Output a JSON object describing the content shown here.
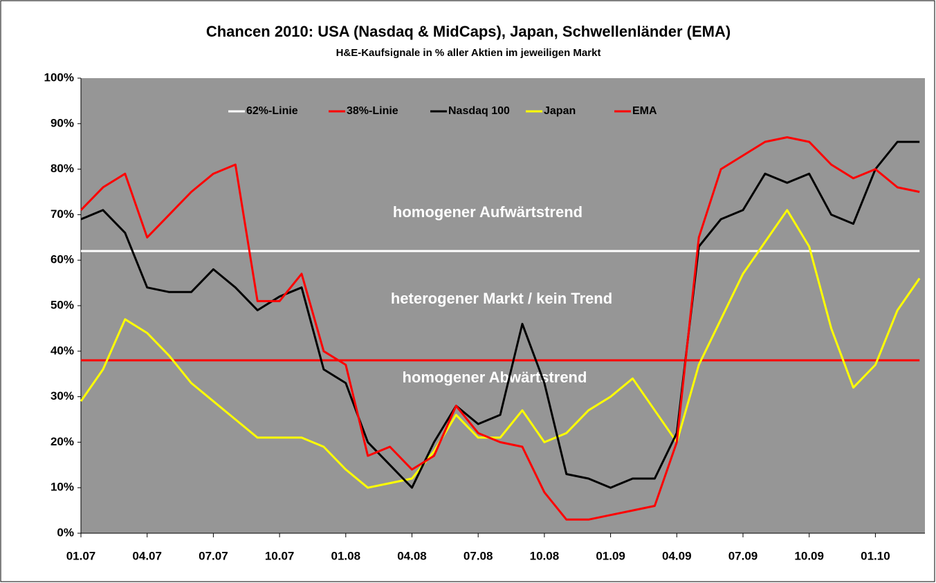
{
  "chart_data": {
    "type": "line",
    "title": "Chancen 2010: USA (Nasdaq & MidCaps), Japan, Schwellenländer (EMA)",
    "subtitle": "H&E-Kaufsignale in % aller Aktien im jeweiligen Markt",
    "annotations": [
      "homogener Aufwärtstrend",
      "heterogener Markt / kein Trend",
      "homogener Abwärtstrend"
    ],
    "categories": [
      "01.07",
      null,
      null,
      "04.07",
      null,
      null,
      "07.07",
      null,
      null,
      "10.07",
      null,
      null,
      "01.08",
      null,
      null,
      "04.08",
      null,
      null,
      "07.08",
      null,
      null,
      "10.08",
      null,
      null,
      "01.09",
      null,
      null,
      "04.09",
      null,
      null,
      "07.09",
      null,
      null,
      "10.09",
      null,
      null,
      "01.10",
      null,
      null
    ],
    "series": [
      {
        "name": "62%-Linie",
        "color": "#ffffff",
        "values": [
          62,
          62,
          62,
          62,
          62,
          62,
          62,
          62,
          62,
          62,
          62,
          62,
          62,
          62,
          62,
          62,
          62,
          62,
          62,
          62,
          62,
          62,
          62,
          62,
          62,
          62,
          62,
          62,
          62,
          62,
          62,
          62,
          62,
          62,
          62,
          62,
          62,
          62,
          62
        ]
      },
      {
        "name": "38%-Linie",
        "color": "#ff0000",
        "values": [
          38,
          38,
          38,
          38,
          38,
          38,
          38,
          38,
          38,
          38,
          38,
          38,
          38,
          38,
          38,
          38,
          38,
          38,
          38,
          38,
          38,
          38,
          38,
          38,
          38,
          38,
          38,
          38,
          38,
          38,
          38,
          38,
          38,
          38,
          38,
          38,
          38,
          38,
          38
        ]
      },
      {
        "name": "Nasdaq 100",
        "color": "#000000",
        "values": [
          69,
          71,
          66,
          54,
          53,
          53,
          58,
          54,
          49,
          52,
          54,
          36,
          33,
          20,
          15,
          10,
          20,
          28,
          24,
          26,
          46,
          33,
          13,
          12,
          10,
          12,
          12,
          22,
          63,
          69,
          71,
          79,
          77,
          79,
          70,
          68,
          80,
          86,
          86
        ]
      },
      {
        "name": "Japan",
        "color": "#ffff00",
        "values": [
          29,
          36,
          47,
          44,
          39,
          33,
          29,
          25,
          21,
          21,
          21,
          19,
          14,
          10,
          11,
          12,
          18,
          26,
          21,
          21,
          27,
          20,
          22,
          27,
          30,
          34,
          27,
          20,
          37,
          47,
          57,
          64,
          71,
          63,
          45,
          32,
          37,
          49,
          56
        ]
      },
      {
        "name": "EMA",
        "color": "#ff0000",
        "values": [
          71,
          76,
          79,
          65,
          70,
          75,
          79,
          81,
          51,
          51,
          57,
          40,
          37,
          17,
          19,
          14,
          17,
          28,
          22,
          20,
          19,
          9,
          3,
          3,
          4,
          5,
          6,
          20,
          65,
          80,
          83,
          86,
          87,
          86,
          81,
          78,
          80,
          76,
          75
        ]
      }
    ],
    "ylim": [
      0,
      100
    ],
    "yticks": [
      {
        "value": 0,
        "label": "0%"
      },
      {
        "value": 10,
        "label": "10%"
      },
      {
        "value": 20,
        "label": "20%"
      },
      {
        "value": 30,
        "label": "30%"
      },
      {
        "value": 40,
        "label": "40%"
      },
      {
        "value": 50,
        "label": "50%"
      },
      {
        "value": 60,
        "label": "60%"
      },
      {
        "value": 70,
        "label": "70%"
      },
      {
        "value": 80,
        "label": "80%"
      },
      {
        "value": 90,
        "label": "90%"
      },
      {
        "value": 100,
        "label": "100%"
      }
    ],
    "legend": "top",
    "plot_background": "#969696"
  }
}
